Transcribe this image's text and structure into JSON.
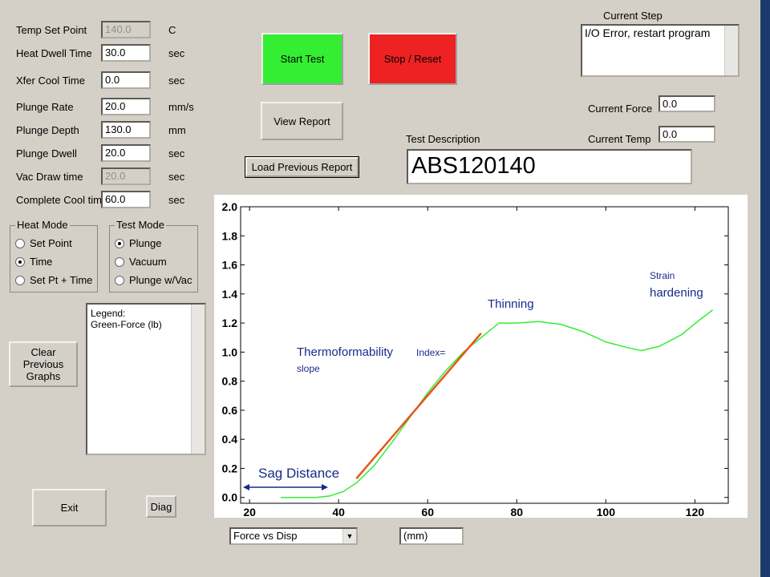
{
  "form_fields": [
    {
      "label": "Temp Set Point",
      "value": "140.0",
      "unit": "C",
      "disabled": true
    },
    {
      "label": "Heat Dwell Time",
      "value": "30.0",
      "unit": "sec",
      "disabled": false
    },
    {
      "label": "Xfer Cool Time",
      "value": "0.0",
      "unit": "sec",
      "disabled": false
    },
    {
      "label": "Plunge Rate",
      "value": "20.0",
      "unit": "mm/s",
      "disabled": false
    },
    {
      "label": "Plunge Depth",
      "value": "130.0",
      "unit": "mm",
      "disabled": false
    },
    {
      "label": "Plunge Dwell",
      "value": "20.0",
      "unit": "sec",
      "disabled": false
    },
    {
      "label": "Vac Draw time",
      "value": "20.0",
      "unit": "sec",
      "disabled": true
    },
    {
      "label": "Complete Cool time",
      "value": "60.0",
      "unit": "sec",
      "disabled": false
    }
  ],
  "buttons": {
    "start_test": "Start Test",
    "stop_reset": "Stop / Reset",
    "view_report": "View Report",
    "load_previous_report": "Load Previous Report",
    "clear_previous_graphs": "Clear Previous Graphs",
    "exit": "Exit",
    "diag": "Diag"
  },
  "current_step": {
    "label": "Current Step",
    "text": "I/O Error, restart program"
  },
  "current_force": {
    "label": "Current Force",
    "value": "0.0"
  },
  "current_temp": {
    "label": "Current Temp",
    "value": "0.0"
  },
  "test_description": {
    "label": "Test Description",
    "value": "ABS120140"
  },
  "heat_mode": {
    "title": "Heat Mode",
    "options": [
      "Set Point",
      "Time",
      "Set Pt + Time"
    ],
    "selected": 1
  },
  "test_mode": {
    "title": "Test Mode",
    "options": [
      "Plunge",
      "Vacuum",
      "Plunge w/Vac"
    ],
    "selected": 0
  },
  "legend_box": {
    "lines": [
      "Legend:",
      "Green-Force (lb)"
    ]
  },
  "graph_select": "Force vs Disp",
  "units_field": "(mm)",
  "chart_data": {
    "type": "line",
    "xlim": [
      18,
      127.5
    ],
    "ylim": [
      -0.04,
      2.0
    ],
    "xticks": [
      20,
      40,
      60,
      80,
      100,
      120
    ],
    "yticks": [
      {
        "value": 0,
        "label": "0.0"
      },
      {
        "value": 0.2,
        "label": "0.2"
      },
      {
        "value": 0.4,
        "label": "0.4"
      },
      {
        "value": 0.6,
        "label": "0.6"
      },
      {
        "value": 0.8,
        "label": "0.8"
      },
      {
        "value": 1.0,
        "label": "1.0"
      },
      {
        "value": 1.2,
        "label": "1.2"
      },
      {
        "value": 1.4,
        "label": "1.4"
      },
      {
        "value": 1.6,
        "label": "1.6"
      },
      {
        "value": 1.8,
        "label": "1.8"
      },
      {
        "value": 2.0,
        "label": "2.0"
      }
    ],
    "series": [
      {
        "color": "#33ee33",
        "x": [
          27,
          35,
          38,
          41,
          44,
          48,
          52,
          56,
          60,
          64,
          68,
          72,
          76,
          80,
          85,
          90,
          95,
          100,
          105,
          108,
          112,
          117,
          121,
          124
        ],
        "values": [
          0,
          0,
          0.01,
          0.04,
          0.1,
          0.22,
          0.38,
          0.55,
          0.72,
          0.87,
          1.0,
          1.1,
          1.2,
          1.2,
          1.21,
          1.19,
          1.14,
          1.07,
          1.03,
          1.01,
          1.04,
          1.12,
          1.22,
          1.29
        ]
      },
      {
        "color": "#e8541c",
        "x": [
          44,
          72
        ],
        "values": [
          0.13,
          1.13
        ]
      }
    ],
    "annotations": [
      "Sag Distance",
      "Thermoformability",
      "Index=",
      "slope",
      "Thinning",
      "Strain",
      "hardening"
    ]
  }
}
